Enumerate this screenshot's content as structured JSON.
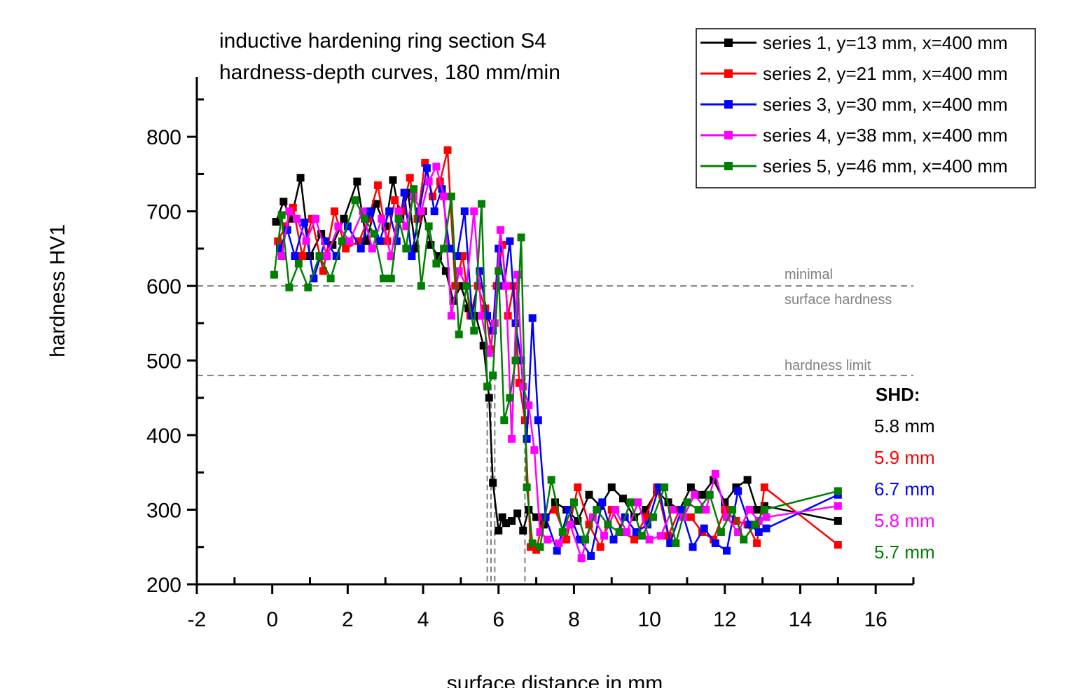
{
  "chart_data": {
    "type": "line",
    "title_lines": [
      "inductive hardening ring section S4",
      "hardness-depth curves, 180 mm/min"
    ],
    "xlabel": "surface distance in mm",
    "ylabel": "hardness HV1",
    "xlim": [
      -2,
      17
    ],
    "ylim": [
      200,
      880
    ],
    "x_ticks": [
      -2,
      0,
      2,
      4,
      6,
      8,
      10,
      12,
      14,
      16
    ],
    "x_tick_labels": [
      "-2",
      "0",
      "2",
      "4",
      "6",
      "8",
      "10",
      "12",
      "14",
      "16"
    ],
    "y_ticks": [
      200,
      300,
      400,
      500,
      600,
      700,
      800
    ],
    "y_tick_labels": [
      "200",
      "300",
      "400",
      "500",
      "600",
      "700",
      "800"
    ],
    "grid": false,
    "legend_position": "top-right",
    "reference_lines": [
      {
        "y": 600,
        "label_lines": [
          "minimal",
          "surface hardness"
        ],
        "color": "#808080"
      },
      {
        "y": 480,
        "label_lines": [
          "hardness limit"
        ],
        "color": "#808080"
      }
    ],
    "shd_heading": "SHD:",
    "shd_markers": [
      5.8,
      5.9,
      6.7,
      5.8,
      5.7
    ],
    "series": [
      {
        "name": "series 1, y=13 mm, x=400 mm",
        "color": "#000000",
        "shd_label": "5.8 mm",
        "x": [
          0.1,
          0.3,
          0.5,
          0.75,
          1.0,
          1.3,
          1.6,
          1.9,
          2.25,
          2.5,
          2.75,
          3.0,
          3.2,
          3.4,
          3.6,
          3.8,
          4.0,
          4.2,
          4.4,
          4.6,
          4.8,
          5.0,
          5.2,
          5.4,
          5.6,
          5.75,
          5.85,
          6.0,
          6.1,
          6.2,
          6.35,
          6.5,
          6.65,
          6.8,
          7.0,
          7.2,
          7.5,
          7.8,
          8.1,
          8.4,
          8.7,
          9.0,
          9.3,
          9.6,
          9.9,
          10.2,
          10.5,
          10.8,
          11.1,
          11.4,
          11.7,
          12.0,
          12.3,
          12.6,
          12.85,
          13.05,
          15.0
        ],
        "y": [
          686,
          713,
          690,
          745,
          640,
          670,
          655,
          690,
          740,
          660,
          710,
          680,
          742,
          690,
          725,
          650,
          700,
          655,
          640,
          620,
          580,
          600,
          570,
          560,
          520,
          450,
          336,
          272,
          290,
          282,
          285,
          295,
          272,
          300,
          290,
          280,
          310,
          300,
          285,
          320,
          305,
          330,
          315,
          290,
          300,
          325,
          310,
          300,
          330,
          320,
          340,
          310,
          330,
          340,
          300,
          305,
          285
        ]
      },
      {
        "name": "series 2, y=21 mm, x=400 mm",
        "color": "#ff0000",
        "shd_label": "5.9 mm",
        "x": [
          0.15,
          0.35,
          0.55,
          0.8,
          1.05,
          1.35,
          1.65,
          1.95,
          2.3,
          2.55,
          2.8,
          3.05,
          3.25,
          3.45,
          3.65,
          3.85,
          4.05,
          4.25,
          4.45,
          4.65,
          4.85,
          5.05,
          5.25,
          5.45,
          5.65,
          5.8,
          5.95,
          6.1,
          6.25,
          6.4,
          6.55,
          6.7,
          6.85,
          7.0,
          7.2,
          7.5,
          7.8,
          8.1,
          8.4,
          8.7,
          9.0,
          9.3,
          9.6,
          9.9,
          10.2,
          10.5,
          10.8,
          11.1,
          11.4,
          11.7,
          12.0,
          12.3,
          12.6,
          12.85,
          13.05,
          15.0
        ],
        "y": [
          660,
          680,
          705,
          640,
          690,
          620,
          700,
          650,
          660,
          690,
          735,
          660,
          715,
          700,
          745,
          690,
          765,
          720,
          740,
          782,
          600,
          640,
          560,
          600,
          570,
          515,
          600,
          655,
          560,
          600,
          470,
          420,
          250,
          246,
          290,
          300,
          260,
          330,
          280,
          250,
          300,
          270,
          260,
          290,
          330,
          265,
          300,
          290,
          270,
          260,
          300,
          285,
          280,
          255,
          330,
          253
        ]
      },
      {
        "name": "series 3, y=30 mm, x=400 mm",
        "color": "#0000ff",
        "shd_label": "6.7 mm",
        "x": [
          0.2,
          0.4,
          0.6,
          0.85,
          1.1,
          1.4,
          1.7,
          2.0,
          2.35,
          2.6,
          2.85,
          3.1,
          3.3,
          3.5,
          3.7,
          3.9,
          4.1,
          4.3,
          4.5,
          4.7,
          4.9,
          5.1,
          5.3,
          5.5,
          5.7,
          5.85,
          6.0,
          6.15,
          6.3,
          6.45,
          6.6,
          6.75,
          6.9,
          7.05,
          7.25,
          7.55,
          7.85,
          8.15,
          8.45,
          8.75,
          9.05,
          9.35,
          9.65,
          9.95,
          10.25,
          10.55,
          10.85,
          11.15,
          11.45,
          11.75,
          12.05,
          12.35,
          12.65,
          12.9,
          13.1,
          15.0
        ],
        "y": [
          650,
          675,
          640,
          685,
          610,
          660,
          640,
          680,
          650,
          700,
          660,
          700,
          660,
          725,
          640,
          700,
          758,
          700,
          730,
          650,
          640,
          700,
          560,
          620,
          560,
          540,
          650,
          600,
          660,
          550,
          500,
          395,
          557,
          420,
          290,
          245,
          300,
          260,
          238,
          310,
          260,
          290,
          270,
          280,
          330,
          255,
          300,
          250,
          275,
          255,
          245,
          325,
          280,
          270,
          275,
          320
        ]
      },
      {
        "name": "series 4, y=38 mm, x=400 mm",
        "color": "#ff00ff",
        "shd_label": "5.8 mm",
        "x": [
          0.25,
          0.45,
          0.65,
          0.9,
          1.15,
          1.45,
          1.75,
          2.05,
          2.4,
          2.65,
          2.9,
          3.15,
          3.35,
          3.55,
          3.75,
          3.95,
          4.15,
          4.35,
          4.55,
          4.75,
          4.95,
          5.15,
          5.35,
          5.55,
          5.75,
          5.9,
          6.05,
          6.2,
          6.35,
          6.5,
          6.65,
          6.8,
          6.95,
          7.1,
          7.3,
          7.6,
          7.9,
          8.2,
          8.5,
          8.8,
          9.1,
          9.4,
          9.7,
          10.0,
          10.3,
          10.6,
          10.9,
          11.2,
          11.5,
          11.75,
          12.05,
          12.35,
          12.65,
          12.9,
          13.1,
          15.0
        ],
        "y": [
          640,
          700,
          690,
          660,
          690,
          640,
          680,
          660,
          700,
          650,
          690,
          640,
          700,
          680,
          720,
          700,
          740,
          760,
          720,
          560,
          620,
          600,
          700,
          560,
          510,
          550,
          675,
          600,
          395,
          615,
          465,
          440,
          380,
          270,
          260,
          255,
          280,
          235,
          290,
          265,
          300,
          270,
          310,
          260,
          265,
          300,
          290,
          320,
          300,
          348,
          290,
          270,
          300,
          285,
          290,
          305
        ]
      },
      {
        "name": "series 5, y=46 mm, x=400 mm",
        "color": "#008000",
        "shd_label": "5.7 mm",
        "x": [
          0.05,
          0.25,
          0.45,
          0.7,
          0.95,
          1.25,
          1.55,
          1.85,
          2.2,
          2.45,
          2.7,
          2.95,
          3.15,
          3.35,
          3.55,
          3.75,
          3.95,
          4.15,
          4.35,
          4.55,
          4.75,
          4.95,
          5.15,
          5.35,
          5.55,
          5.7,
          5.85,
          6.0,
          6.15,
          6.3,
          6.45,
          6.6,
          6.75,
          6.9,
          7.1,
          7.4,
          7.7,
          8.0,
          8.3,
          8.6,
          8.9,
          9.2,
          9.5,
          9.8,
          10.1,
          10.4,
          10.7,
          11.0,
          11.3,
          11.6,
          11.9,
          12.2,
          12.5,
          12.8,
          13.05,
          15.0
        ],
        "y": [
          615,
          695,
          598,
          630,
          598,
          640,
          610,
          660,
          715,
          690,
          670,
          610,
          610,
          690,
          650,
          730,
          600,
          680,
          630,
          650,
          720,
          535,
          600,
          540,
          710,
          465,
          480,
          620,
          420,
          450,
          500,
          665,
          330,
          255,
          250,
          340,
          270,
          310,
          260,
          300,
          280,
          270,
          310,
          265,
          290,
          330,
          255,
          310,
          300,
          320,
          270,
          300,
          260,
          280,
          300,
          325
        ]
      }
    ]
  }
}
